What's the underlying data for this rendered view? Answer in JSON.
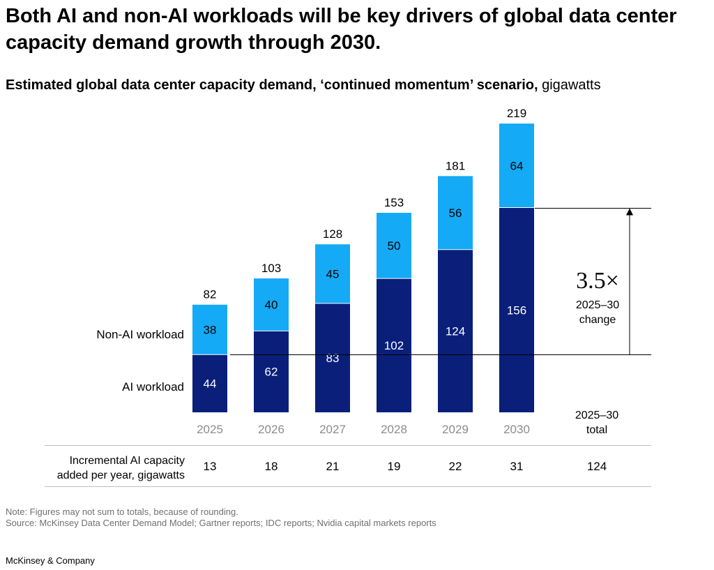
{
  "header": {
    "title": "Both AI and non-AI workloads will be key drivers of global data center capacity demand growth through 2030.",
    "subtitle_bold": "Estimated global data center capacity demand, ‘continued momentum’ scenario,",
    "subtitle_unit": "gigawatts"
  },
  "colors": {
    "ai": "#0A1F7A",
    "non_ai": "#14AAF5",
    "axis_text": "#8C8C8C",
    "rule": "#BDBDBD"
  },
  "chart_data": {
    "type": "bar",
    "stacked": true,
    "title": "Estimated global data center capacity demand, ‘continued momentum’ scenario, gigawatts",
    "categories": [
      "2025",
      "2026",
      "2027",
      "2028",
      "2029",
      "2030"
    ],
    "series": [
      {
        "name": "AI workload",
        "values": [
          44,
          62,
          83,
          102,
          124,
          156
        ]
      },
      {
        "name": "Non-AI workload",
        "values": [
          38,
          40,
          45,
          50,
          56,
          64
        ]
      }
    ],
    "totals": [
      "82",
      "103",
      "128",
      "153",
      "181",
      "219"
    ],
    "ylim": [
      0,
      219
    ],
    "annotation": {
      "multiplier": "3.5×",
      "caption_line1": "2025–30",
      "caption_line2": "change"
    },
    "total_column": {
      "line1": "2025–30",
      "line2": "total"
    },
    "incremental": {
      "label_line1": "Incremental AI capacity",
      "label_line2": "added per year, gigawatts",
      "values": [
        "13",
        "18",
        "21",
        "19",
        "22",
        "31"
      ],
      "total": "124"
    }
  },
  "footer": {
    "note": "Note: Figures may not sum to totals, because of rounding.",
    "source": "Source: McKinsey Data Center Demand Model; Gartner reports; IDC reports; Nvidia capital markets reports",
    "brand": "McKinsey & Company"
  }
}
